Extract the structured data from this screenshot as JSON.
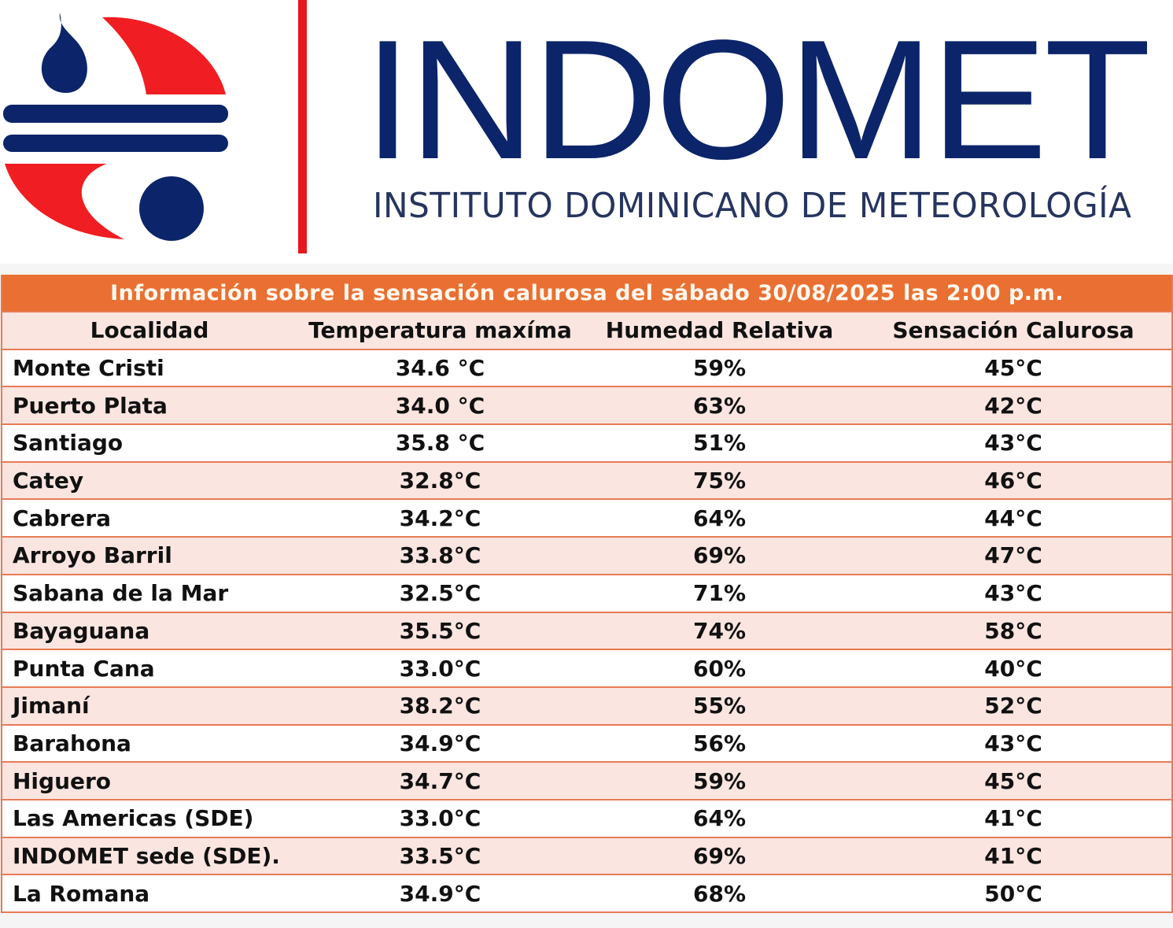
{
  "logo": {
    "brand": "INDOMET",
    "subtitle": "INSTITUTO DOMINICANO DE METEOROLOGÍA"
  },
  "colors": {
    "navy": "#0c2469",
    "red": "#e8161f",
    "orange": "#e97032",
    "pink_row": "#fbe5e0"
  },
  "table": {
    "title": "Información sobre la sensación calurosa del sábado 30/08/2025 las 2:00 p.m.",
    "headers": [
      "Localidad",
      "Temperatura maxíma",
      "Humedad Relativa",
      "Sensación Calurosa"
    ],
    "rows": [
      [
        "Monte Cristi",
        "34.6 °C",
        "59%",
        "45°C"
      ],
      [
        "Puerto Plata",
        "34.0 °C",
        "63%",
        "42°C"
      ],
      [
        "Santiago",
        "35.8 °C",
        "51%",
        "43°C"
      ],
      [
        "Catey",
        "32.8°C",
        "75%",
        "46°C"
      ],
      [
        "Cabrera",
        "34.2°C",
        "64%",
        "44°C"
      ],
      [
        "Arroyo Barril",
        "33.8°C",
        "69%",
        "47°C"
      ],
      [
        "Sabana de la Mar",
        "32.5°C",
        "71%",
        "43°C"
      ],
      [
        "Bayaguana",
        "35.5°C",
        "74%",
        "58°C"
      ],
      [
        "Punta Cana",
        "33.0°C",
        "60%",
        "40°C"
      ],
      [
        "Jimaní",
        "38.2°C",
        "55%",
        "52°C"
      ],
      [
        "Barahona",
        "34.9°C",
        "56%",
        "43°C"
      ],
      [
        "Higuero",
        "34.7°C",
        "59%",
        "45°C"
      ],
      [
        "Las Americas (SDE)",
        "33.0°C",
        "64%",
        "41°C"
      ],
      [
        "INDOMET sede (SDE).",
        "33.5°C",
        "69%",
        "41°C"
      ],
      [
        "La Romana",
        "34.9°C",
        "68%",
        "50°C"
      ]
    ]
  }
}
